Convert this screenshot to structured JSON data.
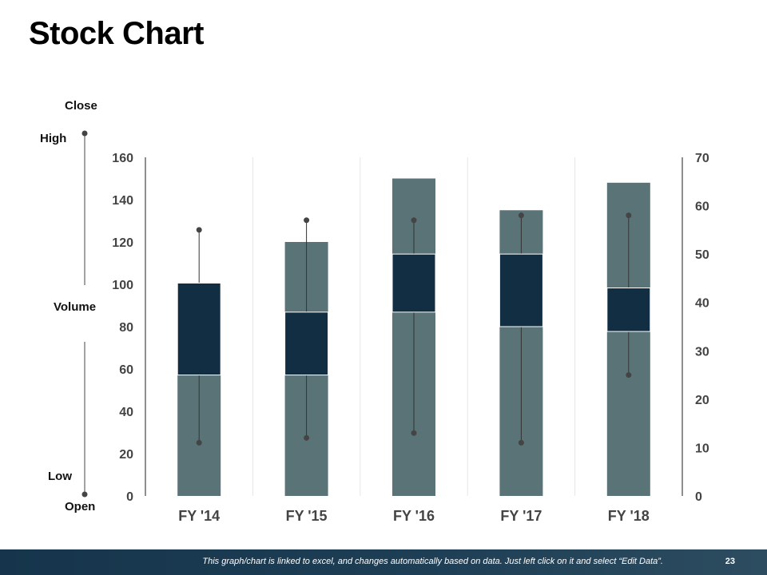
{
  "page": {
    "title": "Stock Chart",
    "footer_note": "This graph/chart is linked to excel, and changes automatically based on data. Just left click on it and select “Edit Data”.",
    "page_number": "23"
  },
  "legend": {
    "close": "Close",
    "high": "High",
    "volume": "Volume",
    "low": "Low",
    "open": "Open"
  },
  "colors": {
    "volume_bar": "#5a7377",
    "candle_body": "#112e43",
    "wick": "#333333",
    "marker": "#444444",
    "axis": "#444444",
    "grid": "#e6e6e6",
    "text": "#444444"
  },
  "chart_data": {
    "type": "stock",
    "title": "Stock Chart",
    "categories": [
      "FY '14",
      "FY '15",
      "FY '16",
      "FY '17",
      "FY '18"
    ],
    "volume_axis": {
      "ylim": [
        0,
        160
      ],
      "ticks": [
        "0",
        "20",
        "40",
        "60",
        "80",
        "100",
        "120",
        "140",
        "160"
      ]
    },
    "price_axis": {
      "ylim": [
        0,
        70
      ],
      "ticks": [
        "0",
        "10",
        "20",
        "30",
        "40",
        "50",
        "60",
        "70"
      ]
    },
    "series": [
      {
        "name": "Volume",
        "values": [
          100,
          120,
          150,
          135,
          148
        ]
      },
      {
        "name": "Open",
        "values": [
          25,
          25,
          38,
          35,
          34
        ]
      },
      {
        "name": "High",
        "values": [
          55,
          57,
          57,
          58,
          58
        ]
      },
      {
        "name": "Low",
        "values": [
          11,
          12,
          13,
          11,
          25
        ]
      },
      {
        "name": "Close",
        "values": [
          44,
          38,
          50,
          50,
          43
        ]
      }
    ]
  }
}
